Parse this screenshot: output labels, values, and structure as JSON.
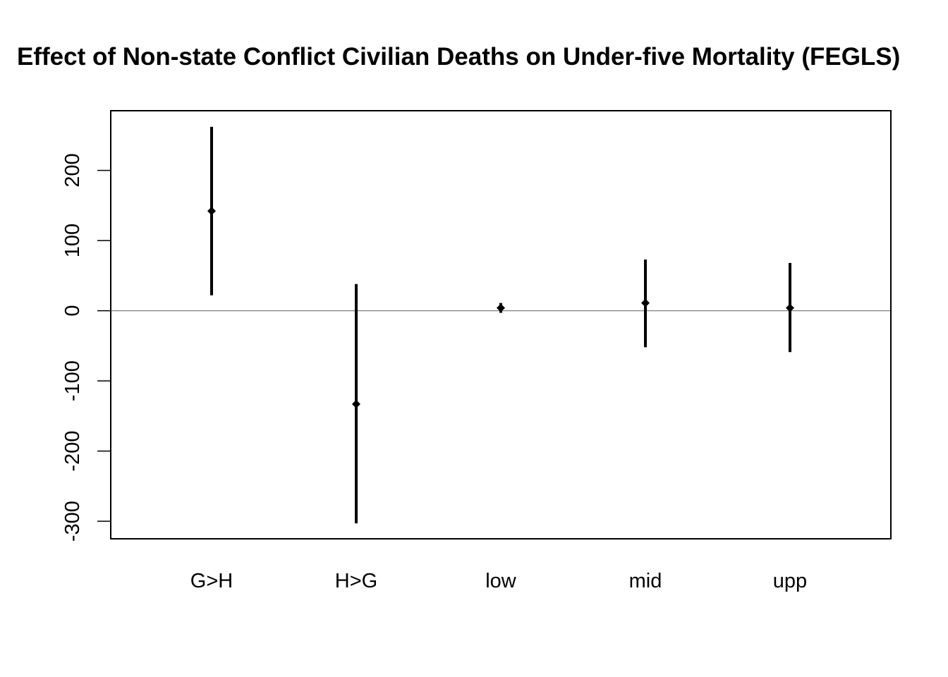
{
  "chart_data": {
    "type": "errorbar",
    "title": "Effect of Non-state Conflict Civilian Deaths on Under-five Mortality (FEGLS)",
    "xlabel": "",
    "ylabel": "",
    "categories": [
      "G>H",
      "H>G",
      "low",
      "mid",
      "upp"
    ],
    "estimates": [
      142,
      -133,
      4,
      11,
      4
    ],
    "lower": [
      22,
      -303,
      -3,
      -52,
      -59
    ],
    "upper": [
      262,
      38,
      11,
      73,
      68
    ],
    "ylim": [
      -325,
      285
    ],
    "yticks": [
      -300,
      -200,
      -100,
      0,
      100,
      200
    ],
    "reference_line": 0,
    "grid": false,
    "legend": "none",
    "colors": {
      "marks": "#000000",
      "reference_line": "#808080",
      "frame": "#000000"
    }
  }
}
